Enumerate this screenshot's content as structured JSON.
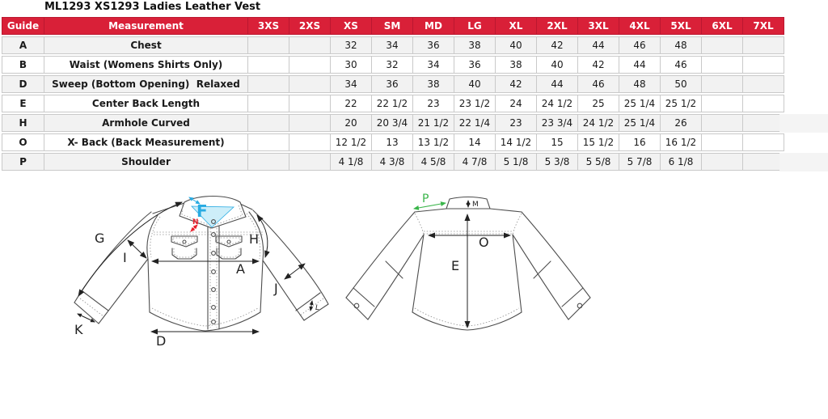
{
  "page_title": "ML1293 XS1293 Ladies Leather Vest",
  "colors": {
    "header_bg": "#d92038",
    "header_border": "#bb1730",
    "grid": "#c9c9c9",
    "row_alt": "#f2f2f2",
    "accent_cyan": "#29abe2",
    "accent_red": "#e8212e",
    "accent_green": "#3ab54a",
    "line": "#4d4d4d",
    "text": "#1a1a1a"
  },
  "size_chart": {
    "columns": [
      "Guide",
      "Measurement",
      "3XS",
      "2XS",
      "XS",
      "SM",
      "MD",
      "LG",
      "XL",
      "2XL",
      "3XL",
      "4XL",
      "5XL",
      "6XL",
      "7XL"
    ],
    "rows": [
      {
        "guide": "A",
        "measurement": "Chest",
        "sizes": [
          "",
          "",
          "32",
          "34",
          "36",
          "38",
          "40",
          "42",
          "44",
          "46",
          "48",
          "",
          ""
        ]
      },
      {
        "guide": "B",
        "measurement": "Waist (Womens Shirts Only)",
        "sizes": [
          "",
          "",
          "30",
          "32",
          "34",
          "36",
          "38",
          "40",
          "42",
          "44",
          "46",
          "",
          ""
        ]
      },
      {
        "guide": "D",
        "measurement": "Sweep (Bottom Opening)  Relaxed",
        "sizes": [
          "",
          "",
          "34",
          "36",
          "38",
          "40",
          "42",
          "44",
          "46",
          "48",
          "50",
          "",
          ""
        ]
      },
      {
        "guide": "E",
        "measurement": "Center Back Length",
        "sizes": [
          "",
          "",
          "22",
          "22 1/2",
          "23",
          "23 1/2",
          "24",
          "24 1/2",
          "25",
          "25 1/4",
          "25 1/2",
          "",
          ""
        ]
      },
      {
        "guide": "H",
        "measurement": "Armhole Curved",
        "sizes": [
          "",
          "",
          "20",
          "20 3/4",
          "21 1/2",
          "22 1/4",
          "23",
          "23 3/4",
          "24 1/2",
          "25 1/4",
          "26",
          "",
          ""
        ]
      },
      {
        "guide": "O",
        "measurement": "X- Back (Back Measurement)",
        "sizes": [
          "",
          "",
          "12 1/2",
          "13",
          "13 1/2",
          "14",
          "14 1/2",
          "15",
          "15 1/2",
          "16",
          "16 1/2",
          "",
          ""
        ]
      },
      {
        "guide": "P",
        "measurement": "Shoulder",
        "sizes": [
          "",
          "",
          "4 1/8",
          "4 3/8",
          "4 5/8",
          "4 7/8",
          "5 1/8",
          "5 3/8",
          "5 5/8",
          "5 7/8",
          "6 1/8",
          "",
          ""
        ]
      }
    ]
  },
  "diagram": {
    "labels": {
      "sleeve_length": "G",
      "shoulder_to_armpit": "I",
      "collar_front": "F",
      "neck": "N",
      "armhole": "H",
      "chest": "A",
      "sleeve_width": "J",
      "cuff_opening": "K",
      "cuff_height": "L",
      "sweep": "D",
      "shoulder": "P",
      "collar_height": "M",
      "x_back": "O",
      "center_back": "E"
    }
  }
}
